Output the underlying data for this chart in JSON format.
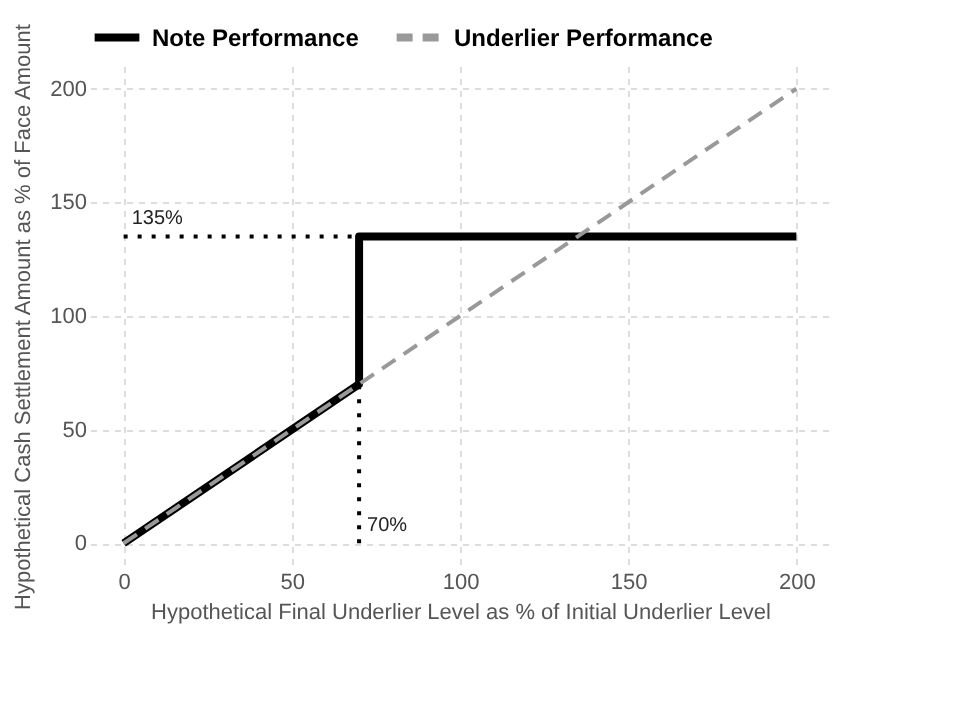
{
  "chart_data": {
    "type": "line",
    "xlabel": "Hypothetical Final Underlier Level as % of Initial Underlier Level",
    "ylabel": "Hypothetical Cash Settlement Amount as % of Face Amount",
    "series": [
      {
        "name": "Note Performance",
        "color": "#000000",
        "line_style": "solid",
        "x": [
          0,
          70,
          70,
          200
        ],
        "values": [
          0,
          70,
          135,
          135
        ]
      },
      {
        "name": "Underlier Performance",
        "color": "#999999",
        "line_style": "dashed",
        "x": [
          0,
          200
        ],
        "values": [
          0,
          200
        ]
      },
      {
        "color": "#000000",
        "line_style": "dotted",
        "x": [
          0,
          70
        ],
        "values": [
          135,
          135
        ]
      },
      {
        "color": "#000000",
        "line_style": "dotted",
        "x": [
          70,
          70
        ],
        "values": [
          0,
          70
        ]
      }
    ],
    "annotations": [
      {
        "text": "135%",
        "x": 0,
        "y": 135
      },
      {
        "text": "70%",
        "x": 70,
        "y": 0
      }
    ],
    "xlim": [
      -10,
      210
    ],
    "ylim": [
      -10,
      210
    ],
    "xticks": [
      0,
      50,
      100,
      150,
      200
    ],
    "yticks": [
      0,
      50,
      100,
      150,
      200
    ],
    "grid": true,
    "legend": "top left",
    "marker": "none"
  }
}
